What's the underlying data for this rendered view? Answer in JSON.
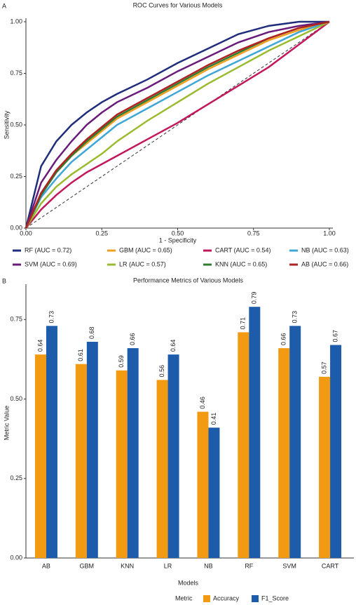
{
  "chart_data": [
    {
      "type": "line",
      "panel_label": "A",
      "title": "ROC Curves for Various Models",
      "x_label": "1 - Specificity",
      "y_label": "Sensitivity",
      "xlim": [
        0,
        1
      ],
      "ylim": [
        0,
        1
      ],
      "xticks": [
        {
          "value": 0,
          "label": "0.00"
        },
        {
          "value": 0.25,
          "label": "0.25"
        },
        {
          "value": 0.5,
          "label": "0.50"
        },
        {
          "value": 0.75,
          "label": "0.75"
        },
        {
          "value": 1,
          "label": "1.00"
        }
      ],
      "yticks": [
        {
          "value": 0,
          "label": "0.00"
        },
        {
          "value": 0.25,
          "label": "0.25"
        },
        {
          "value": 0.5,
          "label": "0.50"
        },
        {
          "value": 0.75,
          "label": "0.75"
        },
        {
          "value": 1,
          "label": "1.00"
        }
      ],
      "diagonal": true,
      "x": [
        0,
        0.05,
        0.1,
        0.15,
        0.2,
        0.25,
        0.3,
        0.4,
        0.5,
        0.6,
        0.7,
        0.8,
        0.9,
        1
      ],
      "series": [
        {
          "name": "RF (AUC = 0.72)",
          "color": "#1f2d7a",
          "values": [
            0,
            0.3,
            0.42,
            0.5,
            0.56,
            0.61,
            0.65,
            0.72,
            0.8,
            0.87,
            0.94,
            0.98,
            1.0,
            1
          ]
        },
        {
          "name": "GBM (AUC = 0.65)",
          "color": "#f0a020",
          "values": [
            0,
            0.17,
            0.27,
            0.35,
            0.41,
            0.47,
            0.53,
            0.61,
            0.69,
            0.77,
            0.84,
            0.91,
            0.96,
            1
          ]
        },
        {
          "name": "CART (AUC = 0.54)",
          "color": "#c2185b",
          "values": [
            0,
            0.09,
            0.16,
            0.22,
            0.27,
            0.31,
            0.35,
            0.43,
            0.51,
            0.6,
            0.69,
            0.78,
            0.89,
            1
          ]
        },
        {
          "name": "NB (AUC = 0.63)",
          "color": "#3fa7d6",
          "values": [
            0,
            0.15,
            0.24,
            0.32,
            0.38,
            0.44,
            0.5,
            0.58,
            0.66,
            0.74,
            0.81,
            0.88,
            0.95,
            1
          ]
        },
        {
          "name": "SVM (AUC = 0.69)",
          "color": "#6a1b7a",
          "values": [
            0,
            0.22,
            0.33,
            0.42,
            0.5,
            0.56,
            0.61,
            0.68,
            0.76,
            0.83,
            0.9,
            0.95,
            0.98,
            1
          ]
        },
        {
          "name": "LR (AUC = 0.57)",
          "color": "#9bbb2e",
          "values": [
            0,
            0.12,
            0.2,
            0.26,
            0.31,
            0.36,
            0.42,
            0.52,
            0.61,
            0.7,
            0.78,
            0.86,
            0.93,
            1
          ]
        },
        {
          "name": "KNN (AUC = 0.65)",
          "color": "#2e7d32",
          "values": [
            0,
            0.16,
            0.27,
            0.35,
            0.42,
            0.48,
            0.54,
            0.62,
            0.7,
            0.78,
            0.85,
            0.92,
            0.97,
            1
          ]
        },
        {
          "name": "AB (AUC = 0.66)",
          "color": "#b22222",
          "values": [
            0,
            0.17,
            0.28,
            0.36,
            0.43,
            0.49,
            0.55,
            0.63,
            0.71,
            0.79,
            0.86,
            0.92,
            0.97,
            1
          ]
        }
      ]
    },
    {
      "type": "bar",
      "panel_label": "B",
      "title": "Performance Metrics of Various Models",
      "x_label": "Models",
      "y_label": "Metric Value",
      "legend_title": "Metric",
      "ylim": [
        0,
        0.85
      ],
      "yticks": [
        {
          "value": 0,
          "label": "0.00"
        },
        {
          "value": 0.25,
          "label": "0.25"
        },
        {
          "value": 0.5,
          "label": "0.50"
        },
        {
          "value": 0.75,
          "label": "0.75"
        }
      ],
      "categories": [
        "AB",
        "GBM",
        "KNN",
        "LR",
        "NB",
        "RF",
        "SVM",
        "CART"
      ],
      "series": [
        {
          "name": "Accuracy",
          "color": "#f29b12",
          "values": [
            0.64,
            0.61,
            0.59,
            0.56,
            0.46,
            0.71,
            0.66,
            0.57
          ]
        },
        {
          "name": "F1_Score",
          "color": "#1c5cab",
          "values": [
            0.73,
            0.68,
            0.66,
            0.64,
            0.41,
            0.79,
            0.73,
            0.67
          ]
        }
      ]
    }
  ]
}
